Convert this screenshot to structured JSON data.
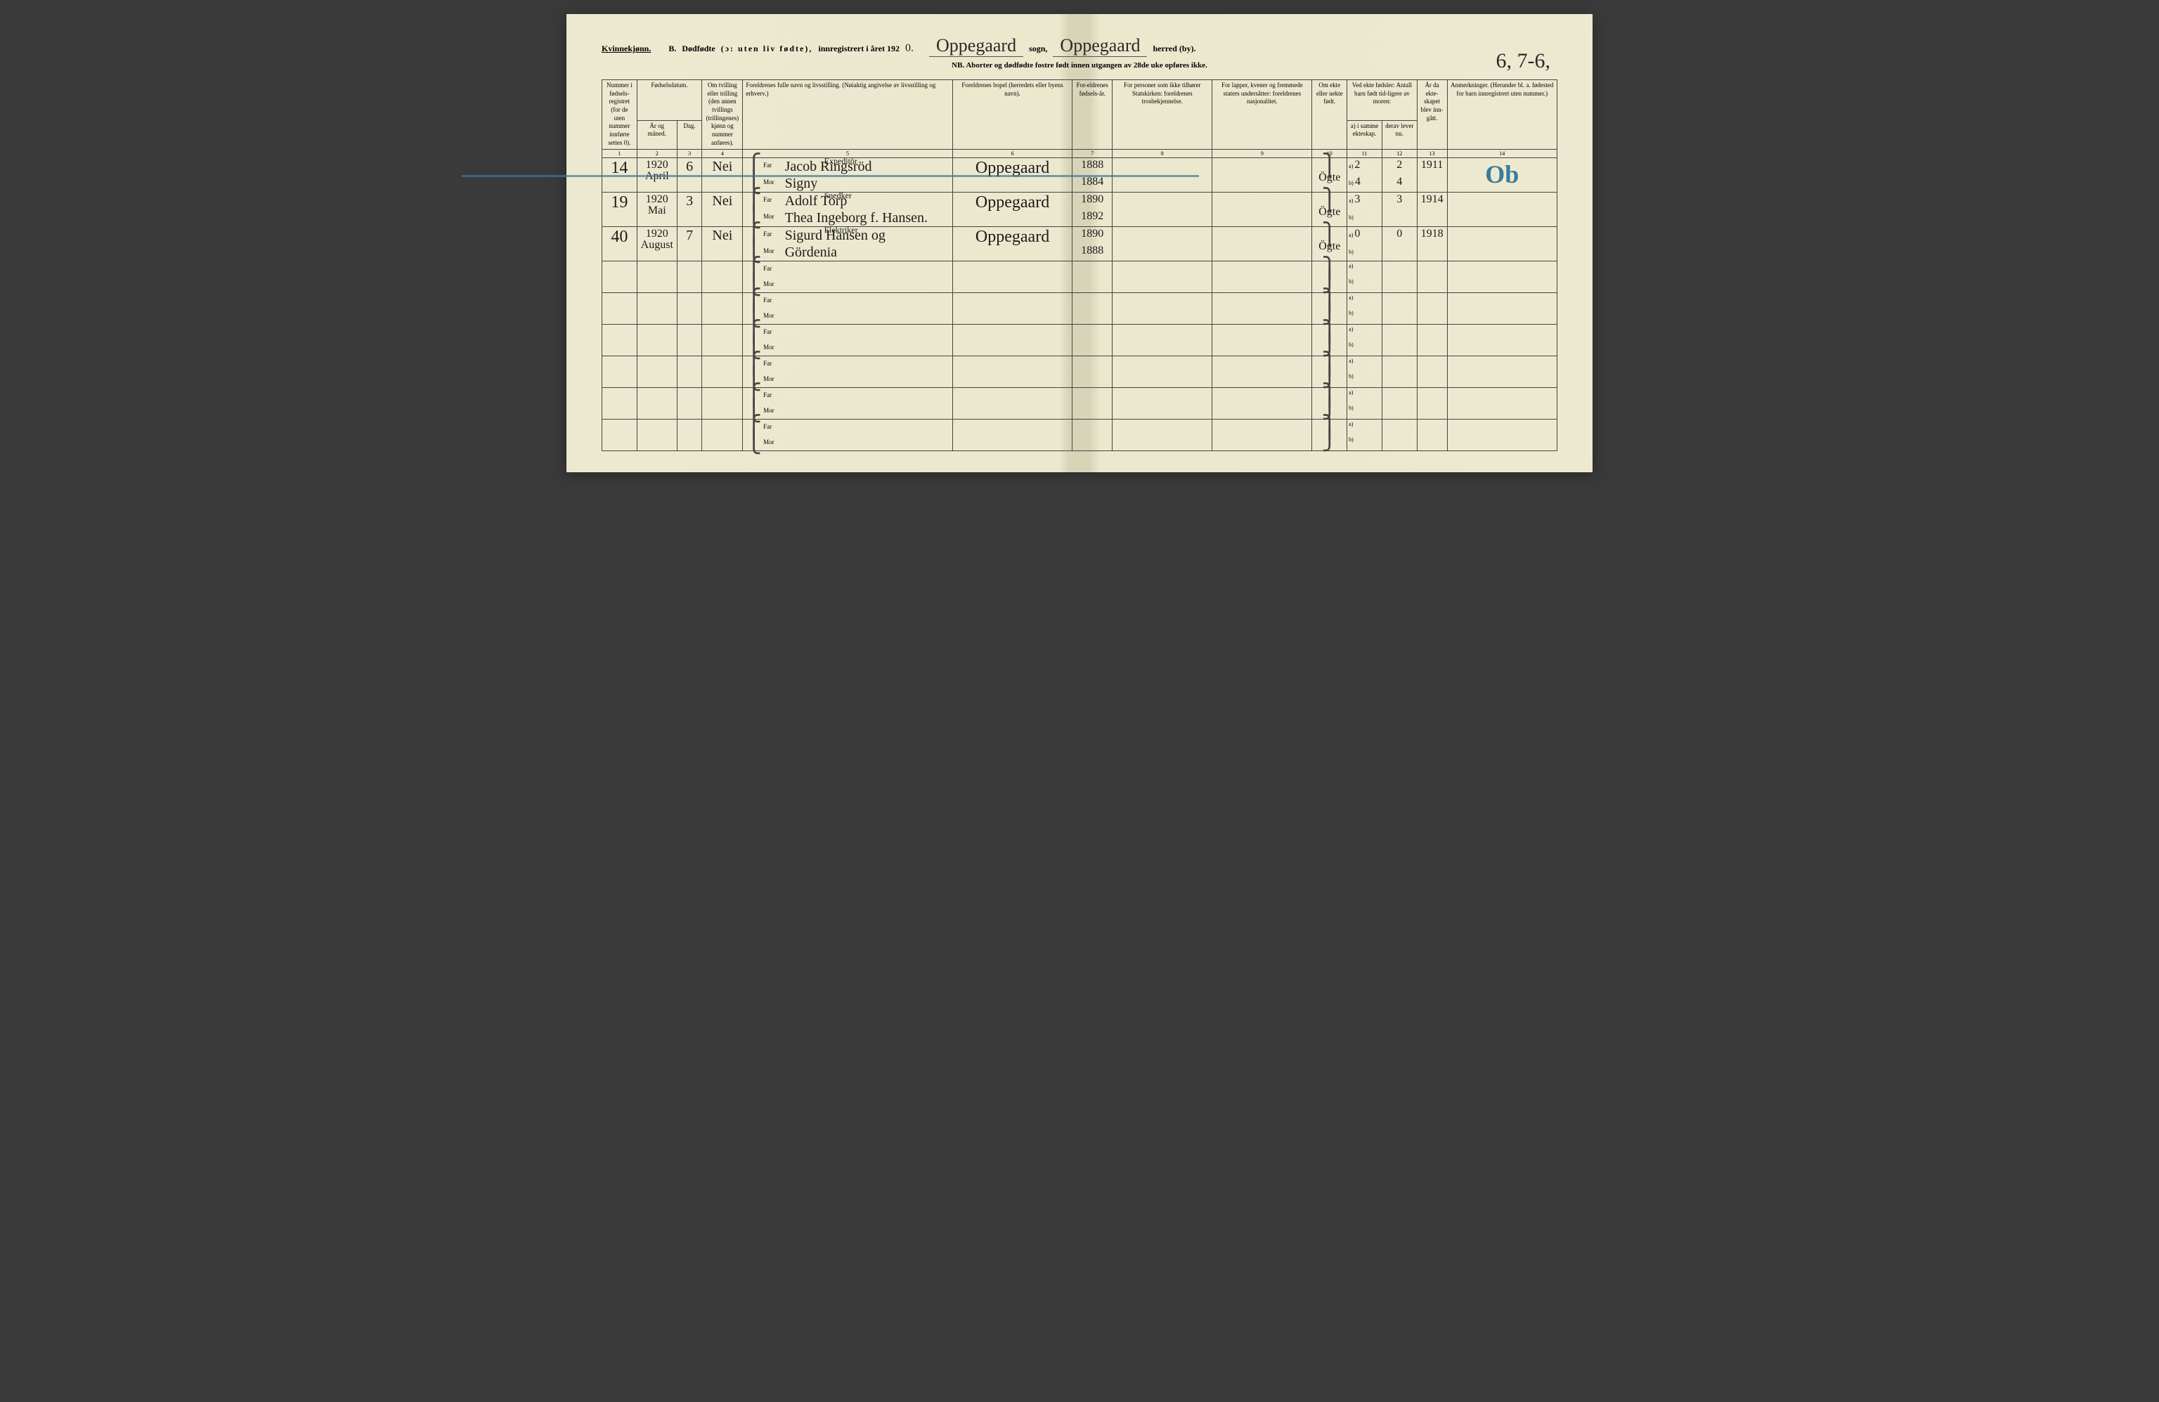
{
  "header": {
    "gender": "Kvinnekjønn.",
    "section": "B.",
    "title_main": "Dødfødte",
    "title_paren": "(ɔ: uten liv fødte),",
    "title_reg": "innregistrert i året 192",
    "year_suffix": "0.",
    "sogn_value": "Oppegaard",
    "sogn_label": "sogn,",
    "herred_value": "Oppegaard",
    "herred_label": "herred (by).",
    "subtitle": "NB. Aborter og dødfødte fostre født innen utgangen av 28de uke opføres ikke.",
    "corner_note": "6, 7-6,"
  },
  "columns": {
    "c1": "Nummer i fødsels-registret (for de uten nummer innførte settes 0).",
    "c2_top": "Fødselsdatum.",
    "c2a": "År og måned.",
    "c2b": "Dag.",
    "c4": "Om tvilling eller trilling (den annen tvillings (trillingenes) kjønn og nummer anføres).",
    "c5": "Foreldrenes fulle navn og livsstilling. (Nøiaktig angivelse av livsstilling og erhverv.)",
    "c6": "Foreldrenes bopel (herredets eller byens navn).",
    "c7": "For-eldrenes fødsels-år.",
    "c8": "For personer som ikke tilhører Statskirken: foreldrenes trosbekjennelse.",
    "c9": "For lapper, kvener og fremmede staters undersåtter: foreldrenes nasjonalitet.",
    "c10": "Om ekte eller uekte født.",
    "c11_top": "Ved ekte fødsler: Antall barn født tid-ligere av moren:",
    "c11a": "a) i samme ekteskap.",
    "c11b": "b) i tidligere ekteskap.",
    "c12a": "derav lever nu.",
    "c12b": "derav lever nu.",
    "c13": "År da ekte-skapet blev inn-gått.",
    "c14": "Anmerkninger. (Herunder bl. a. fødested for barn innregistrert uten nummer.)",
    "far": "Far",
    "mor": "Mor",
    "a_label": "a)",
    "b_label": "b)"
  },
  "colnums": {
    "n1": "1",
    "n2": "2",
    "n3": "3",
    "n4": "4",
    "n5": "5",
    "n6": "6",
    "n7": "7",
    "n8": "8",
    "n9": "9",
    "n10": "10",
    "n11": "11",
    "n12": "12",
    "n13": "13",
    "n14": "14"
  },
  "rows": [
    {
      "num": "14",
      "year": "1920",
      "month": "April",
      "day": "6",
      "twin": "Nei",
      "far_occ": "Expeditör",
      "far_name": "Jacob Ringsröd",
      "mor_name": "Signy",
      "residence": "Oppegaard",
      "far_birth": "1888",
      "mor_birth": "1884",
      "legit": "Ögte",
      "prev_a": "2",
      "prev_b": "4",
      "live_a": "2",
      "live_b": "4",
      "married": "1911",
      "remark": "Ob",
      "struck": true
    },
    {
      "num": "19",
      "year": "1920",
      "month": "Mai",
      "day": "3",
      "twin": "Nei",
      "far_occ": "Snedker",
      "far_name": "Adolf Torp",
      "mor_name": "Thea Ingeborg f. Hansen.",
      "residence": "Oppegaard",
      "far_birth": "1890",
      "mor_birth": "1892",
      "legit": "Ögte",
      "prev_a": "3",
      "prev_b": "",
      "live_a": "3",
      "live_b": "",
      "married": "1914",
      "remark": "",
      "struck": false
    },
    {
      "num": "40",
      "year": "1920",
      "month": "August",
      "day": "7",
      "twin": "Nei",
      "far_occ": "Elektriker",
      "far_name": "Sigurd Hansen og",
      "mor_name": "Gördenia",
      "residence": "Oppegaard",
      "far_birth": "1890",
      "mor_birth": "1888",
      "legit": "Ögte",
      "prev_a": "0",
      "prev_b": "",
      "live_a": "0",
      "live_b": "",
      "married": "1918",
      "remark": "",
      "struck": false
    }
  ],
  "empty_rows": 6
}
